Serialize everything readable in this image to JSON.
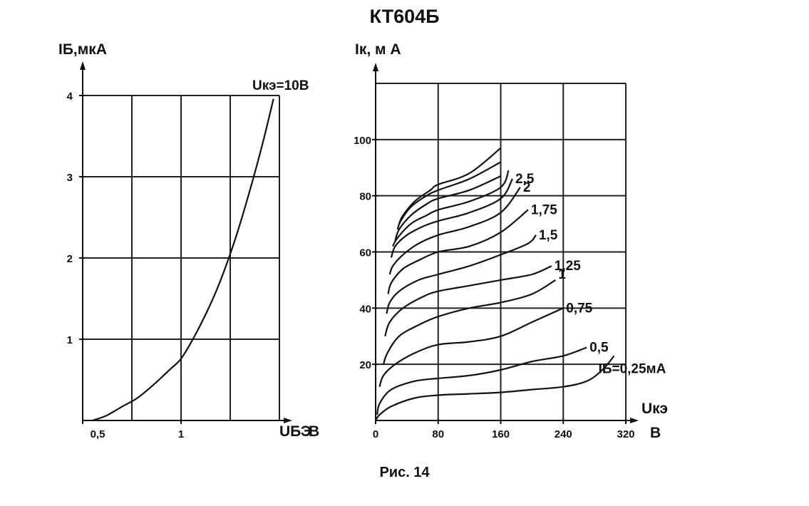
{
  "title": "КТ604Б",
  "caption": "Рис. 14",
  "chart_data": [
    {
      "type": "line",
      "xlabel": "UБЭ",
      "xunit": "В",
      "ylabel": "IБ,мкА",
      "xlim": [
        0.5,
        1.5
      ],
      "ylim": [
        0,
        4
      ],
      "xticks": [
        {
          "v": 0.5,
          "label": "0,5"
        },
        {
          "v": 1,
          "label": "1"
        }
      ],
      "yticks": [
        {
          "v": 1,
          "label": "1"
        },
        {
          "v": 2,
          "label": "2"
        },
        {
          "v": 3,
          "label": "3"
        },
        {
          "v": 4,
          "label": "4"
        }
      ],
      "grid_x": [
        0.75,
        1.0,
        1.25
      ],
      "grid_y": [
        1,
        2,
        3,
        4
      ],
      "grid": true,
      "curve_label": "Uкэ=10В",
      "series": [
        {
          "x": [
            0.55,
            0.62,
            0.7,
            0.78,
            0.86,
            0.94,
            1.0,
            1.06,
            1.12,
            1.18,
            1.24,
            1.3,
            1.36,
            1.42,
            1.47
          ],
          "y": [
            0.0,
            0.06,
            0.17,
            0.28,
            0.44,
            0.62,
            0.76,
            1.0,
            1.28,
            1.6,
            1.98,
            2.42,
            2.92,
            3.46,
            3.96
          ]
        }
      ]
    },
    {
      "type": "line",
      "xlabel": "Uкэ",
      "xunit": "В",
      "ylabel": "Iк, м А",
      "xlim": [
        0,
        320
      ],
      "ylim": [
        0,
        120
      ],
      "xticks": [
        {
          "v": 0,
          "label": "0"
        },
        {
          "v": 80,
          "label": "80"
        },
        {
          "v": 160,
          "label": "160"
        },
        {
          "v": 240,
          "label": "240"
        },
        {
          "v": 320,
          "label": "320"
        }
      ],
      "yticks": [
        {
          "v": 20,
          "label": "20"
        },
        {
          "v": 40,
          "label": "40"
        },
        {
          "v": 60,
          "label": "60"
        },
        {
          "v": 80,
          "label": "80"
        },
        {
          "v": 100,
          "label": "100"
        }
      ],
      "grid_x": [
        80,
        160,
        240,
        320
      ],
      "grid_y": [
        20,
        40,
        60,
        80,
        100,
        120
      ],
      "grid": true,
      "series": [
        {
          "name": "IБ=0,25мА",
          "x": [
            0,
            5,
            20,
            50,
            80,
            120,
            160,
            200,
            240,
            270,
            290,
            305
          ],
          "y": [
            0,
            2,
            5,
            8,
            9,
            9.5,
            10,
            11,
            12,
            14,
            18,
            23
          ]
        },
        {
          "name": "0,5",
          "x": [
            2,
            5,
            20,
            50,
            80,
            120,
            160,
            200,
            240,
            270
          ],
          "y": [
            2,
            6,
            11,
            14,
            15,
            16,
            18,
            21,
            23,
            26
          ]
        },
        {
          "name": "0,75",
          "x": [
            5,
            10,
            25,
            50,
            80,
            120,
            160,
            200,
            240
          ],
          "y": [
            12,
            16,
            20,
            24,
            27,
            28,
            30,
            35,
            40
          ]
        },
        {
          "name": "1",
          "x": [
            10,
            15,
            30,
            55,
            80,
            120,
            160,
            200,
            230
          ],
          "y": [
            20,
            24,
            30,
            34,
            37,
            40,
            42,
            45,
            50
          ]
        },
        {
          "name": "1,25",
          "x": [
            12,
            18,
            35,
            60,
            80,
            120,
            160,
            200,
            225
          ],
          "y": [
            30,
            35,
            40,
            44,
            46,
            48,
            50,
            52,
            55
          ]
        },
        {
          "name": "1,5",
          "x": [
            14,
            18,
            30,
            55,
            80,
            120,
            160,
            195,
            205
          ],
          "y": [
            38,
            42,
            46,
            50,
            52,
            55,
            59,
            63,
            66
          ]
        },
        {
          "name": "1,75",
          "x": [
            16,
            20,
            35,
            55,
            80,
            120,
            160,
            195
          ],
          "y": [
            45,
            49,
            54,
            57,
            60,
            62,
            67,
            75
          ]
        },
        {
          "name": "2",
          "x": [
            18,
            22,
            35,
            55,
            80,
            120,
            160,
            185
          ],
          "y": [
            52,
            55,
            59,
            63,
            66,
            69,
            74,
            83
          ]
        },
        {
          "name": "2,5",
          "x": [
            20,
            25,
            40,
            60,
            80,
            120,
            160,
            175
          ],
          "y": [
            58,
            62,
            66,
            69,
            71,
            74,
            79,
            86
          ]
        },
        {
          "name": "",
          "x": [
            22,
            28,
            45,
            65,
            80,
            120,
            160,
            170
          ],
          "y": [
            62,
            65,
            70,
            73,
            75,
            78,
            83,
            89
          ]
        },
        {
          "name": "",
          "x": [
            25,
            30,
            45,
            65,
            80,
            120,
            160
          ],
          "y": [
            64,
            68,
            73,
            77,
            79,
            82,
            87
          ]
        },
        {
          "name": "",
          "x": [
            28,
            32,
            45,
            65,
            80,
            120,
            160
          ],
          "y": [
            68,
            71,
            76,
            80,
            82,
            86,
            92
          ]
        },
        {
          "name": "",
          "x": [
            30,
            35,
            50,
            70,
            80,
            120,
            160
          ],
          "y": [
            70,
            73,
            78,
            82,
            84,
            88,
            97
          ]
        }
      ]
    }
  ]
}
